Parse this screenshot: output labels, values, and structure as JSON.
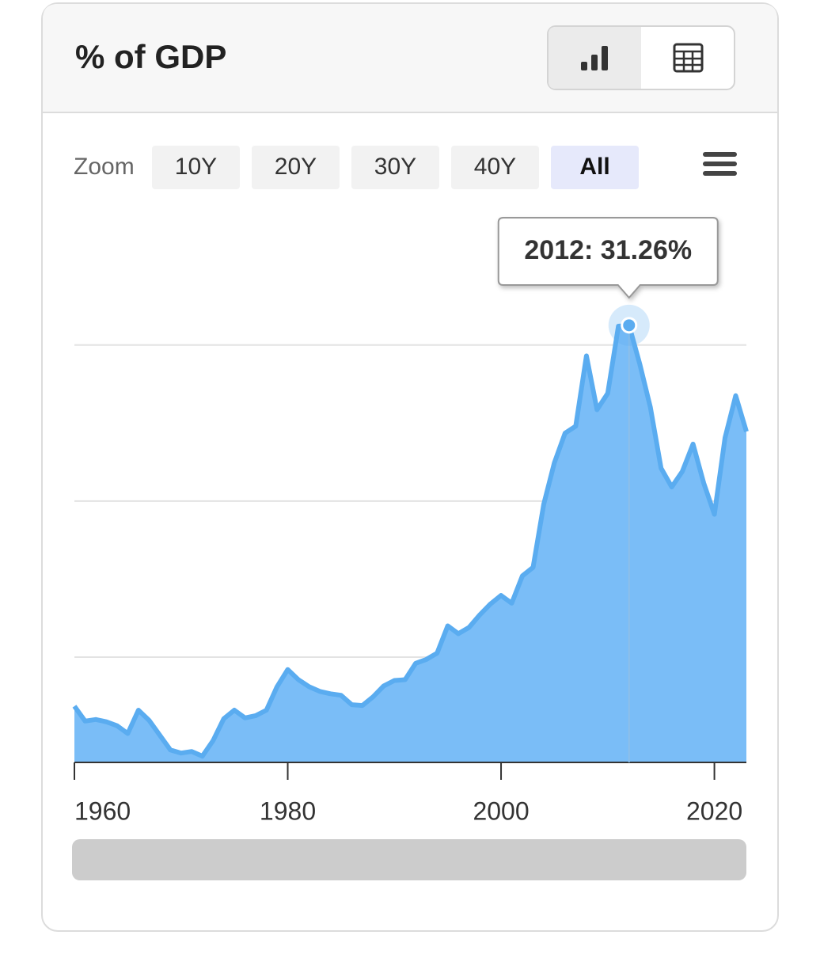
{
  "chart_data": {
    "type": "area",
    "title": "% of GDP",
    "x": [
      1960,
      1961,
      1962,
      1963,
      1964,
      1965,
      1966,
      1967,
      1968,
      1969,
      1970,
      1971,
      1972,
      1973,
      1974,
      1975,
      1976,
      1977,
      1978,
      1979,
      1980,
      1981,
      1982,
      1983,
      1984,
      1985,
      1986,
      1987,
      1988,
      1989,
      1990,
      1991,
      1992,
      1993,
      1994,
      1995,
      1996,
      1997,
      1998,
      1999,
      2000,
      2001,
      2002,
      2003,
      2004,
      2005,
      2006,
      2007,
      2008,
      2009,
      2010,
      2011,
      2012,
      2013,
      2014,
      2015,
      2016,
      2017,
      2018,
      2019,
      2020,
      2021,
      2022,
      2023
    ],
    "values": [
      6.85,
      5.9,
      6.0,
      5.85,
      5.6,
      5.1,
      6.6,
      5.95,
      5.0,
      4.05,
      3.85,
      3.95,
      3.65,
      4.65,
      6.05,
      6.6,
      6.1,
      6.25,
      6.6,
      8.1,
      9.2,
      8.55,
      8.1,
      7.8,
      7.65,
      7.55,
      6.95,
      6.9,
      7.45,
      8.15,
      8.5,
      8.55,
      9.6,
      9.85,
      10.25,
      12.0,
      11.5,
      11.9,
      12.7,
      13.4,
      13.95,
      13.45,
      15.2,
      15.75,
      19.8,
      22.45,
      24.35,
      24.8,
      29.3,
      25.85,
      26.9,
      31.2,
      31.26,
      28.8,
      26.0,
      22.1,
      20.9,
      21.9,
      23.65,
      21.15,
      19.15,
      24.05,
      26.75,
      24.45
    ],
    "color": "#5aacf0",
    "xlim": [
      1960,
      2023
    ],
    "xticks": [
      1960,
      1980,
      2000,
      2020
    ],
    "ylim": [
      3.25,
      38
    ],
    "yticks": [
      10,
      20,
      30
    ],
    "grid": true,
    "highlight_index": 52,
    "tooltip": "2012: 31.26%"
  },
  "toolbar": {
    "zoom_label": "Zoom",
    "buttons": [
      "10Y",
      "20Y",
      "30Y",
      "40Y",
      "All"
    ],
    "active": 4
  }
}
